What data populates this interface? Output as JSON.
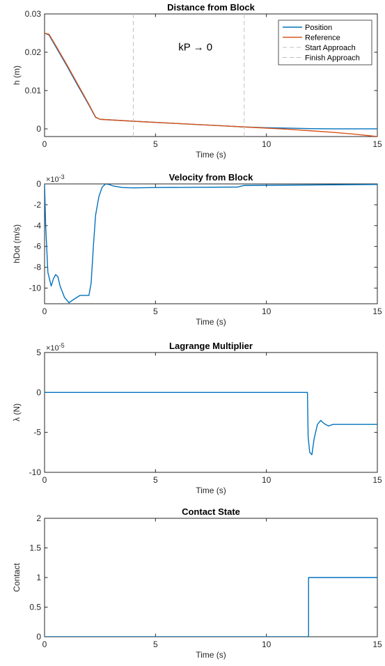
{
  "chart_data": [
    {
      "type": "line",
      "title": "Distance from Block",
      "xlabel": "Time (s)",
      "ylabel": "h (m)",
      "exponent": "",
      "xlim": [
        0,
        15
      ],
      "ylim": [
        -0.002,
        0.03
      ],
      "xticks": [
        0,
        5,
        10,
        15
      ],
      "xtick_labels": [
        "0",
        "5",
        "10",
        "15"
      ],
      "yticks": [
        0,
        0.01,
        0.02,
        0.03
      ],
      "ytick_labels": [
        "0",
        "0.01",
        "0.02",
        "0.03"
      ],
      "legend": "top-right",
      "annotation": {
        "text": "kP → 0",
        "x": 6.8,
        "y": 0.0205
      },
      "series": [
        {
          "name": "Position",
          "color": "#0072BD",
          "style": "solid",
          "x": [
            0,
            0.2,
            0.5,
            1.0,
            1.5,
            2.0,
            2.3,
            2.5,
            4,
            6,
            8,
            9,
            10,
            11,
            12,
            13,
            14,
            15
          ],
          "y": [
            0.025,
            0.0245,
            0.0215,
            0.0165,
            0.0113,
            0.0062,
            0.003,
            0.0025,
            0.002,
            0.0014,
            0.0008,
            0.0005,
            0.0003,
            0.0002,
            5e-05,
            2e-05,
            1e-05,
            1e-05
          ]
        },
        {
          "name": "Reference",
          "color": "#D95319",
          "style": "solid",
          "x": [
            0,
            0.2,
            0.5,
            1.0,
            1.5,
            2.0,
            2.3,
            2.5,
            4,
            6,
            8,
            9,
            10,
            11,
            12,
            13,
            14,
            15
          ],
          "y": [
            0.025,
            0.0247,
            0.0218,
            0.0168,
            0.0116,
            0.0064,
            0.0031,
            0.0025,
            0.002,
            0.0014,
            0.0008,
            0.0005,
            0.0002,
            -0.0001,
            -0.0005,
            -0.0009,
            -0.0014,
            -0.002
          ]
        },
        {
          "name": "Start Approach",
          "color": "#BFBFBF",
          "style": "dashed",
          "vline": 4
        },
        {
          "name": "Finish Approach",
          "color": "#BFBFBF",
          "style": "dashed",
          "vline": 9
        }
      ]
    },
    {
      "type": "line",
      "title": "Velocity from Block",
      "xlabel": "Time (s)",
      "ylabel": "hDot (m/s)",
      "exponent": "×10-3",
      "xlim": [
        0,
        15
      ],
      "ylim": [
        -11.5,
        0
      ],
      "xticks": [
        0,
        5,
        10,
        15
      ],
      "xtick_labels": [
        "0",
        "5",
        "10",
        "15"
      ],
      "yticks": [
        0,
        -2,
        -4,
        -6,
        -8,
        -10
      ],
      "ytick_labels": [
        "0",
        "-2",
        "-4",
        "-6",
        "-8",
        "-10"
      ],
      "series": [
        {
          "name": "",
          "color": "#0072BD",
          "style": "solid",
          "x": [
            0,
            0.05,
            0.15,
            0.3,
            0.4,
            0.5,
            0.6,
            0.7,
            0.9,
            1.1,
            1.3,
            1.6,
            2.0,
            2.1,
            2.2,
            2.3,
            2.45,
            2.6,
            2.75,
            2.9,
            3.1,
            3.5,
            4,
            5,
            7,
            8.7,
            9.0,
            12,
            15
          ],
          "y": [
            0,
            -4,
            -8.5,
            -9.8,
            -9.1,
            -8.7,
            -8.9,
            -9.8,
            -10.9,
            -11.4,
            -11.1,
            -10.7,
            -10.7,
            -9.5,
            -6,
            -3,
            -1.2,
            -0.3,
            0,
            -0.05,
            -0.2,
            -0.35,
            -0.38,
            -0.35,
            -0.32,
            -0.3,
            -0.15,
            -0.1,
            -0.05
          ]
        }
      ]
    },
    {
      "type": "line",
      "title": "Lagrange Multiplier",
      "xlabel": "Time (s)",
      "ylabel": "λ (N)",
      "exponent": "×10-5",
      "xlim": [
        0,
        15
      ],
      "ylim": [
        -10,
        5
      ],
      "xticks": [
        0,
        5,
        10,
        15
      ],
      "xtick_labels": [
        "0",
        "5",
        "10",
        "15"
      ],
      "yticks": [
        5,
        0,
        -5,
        -10
      ],
      "ytick_labels": [
        "5",
        "0",
        "-5",
        "-10"
      ],
      "series": [
        {
          "name": "",
          "color": "#0072BD",
          "style": "solid",
          "x": [
            0,
            11.85,
            11.88,
            11.95,
            12.05,
            12.15,
            12.3,
            12.45,
            12.6,
            12.8,
            13.0,
            13.3,
            15
          ],
          "y": [
            0,
            0,
            -5.5,
            -7.5,
            -7.8,
            -5.8,
            -4.0,
            -3.5,
            -3.9,
            -4.2,
            -4.0,
            -4.0,
            -4.0
          ]
        }
      ]
    },
    {
      "type": "line",
      "title": "Contact State",
      "xlabel": "Time (s)",
      "ylabel": "Contact",
      "exponent": "",
      "xlim": [
        0,
        15
      ],
      "ylim": [
        0,
        2
      ],
      "xticks": [
        0,
        5,
        10,
        15
      ],
      "xtick_labels": [
        "0",
        "5",
        "10",
        "15"
      ],
      "yticks": [
        0,
        0.5,
        1,
        1.5,
        2
      ],
      "ytick_labels": [
        "0",
        "0.5",
        "1",
        "1.5",
        "2"
      ],
      "series": [
        {
          "name": "",
          "color": "#0072BD",
          "style": "solid",
          "x": [
            0,
            11.9,
            11.9,
            15
          ],
          "y": [
            0,
            0,
            1,
            1
          ]
        }
      ]
    }
  ]
}
